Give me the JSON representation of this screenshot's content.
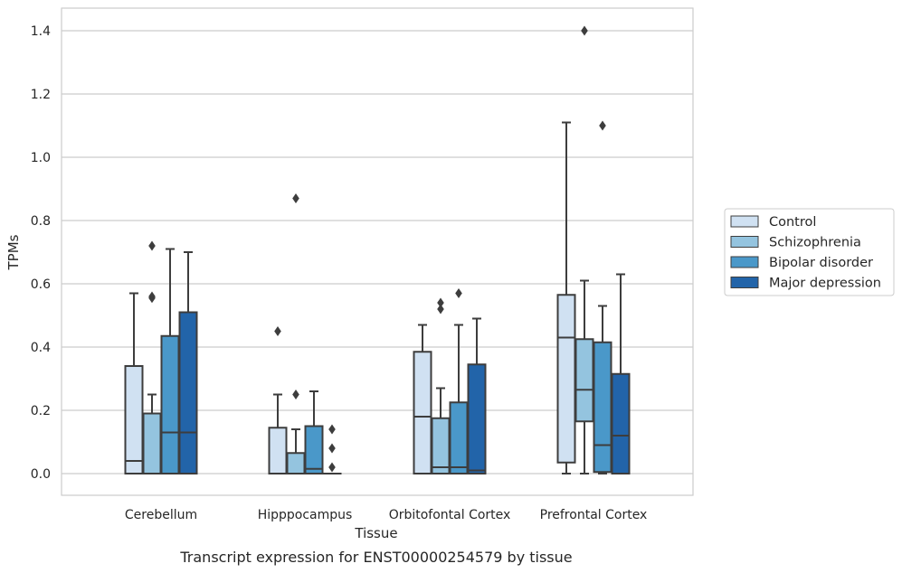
{
  "chart_data": {
    "type": "box",
    "xlabel": "Tissue",
    "ylabel": "TPMs",
    "caption": "Transcript expression for ENST00000254579 by tissue",
    "ylim": [
      -0.07,
      1.47
    ],
    "yticks": [
      0.0,
      0.2,
      0.4,
      0.6,
      0.8,
      1.0,
      1.2,
      1.4
    ],
    "ytick_labels": [
      "0.0",
      "0.2",
      "0.4",
      "0.6",
      "0.8",
      "1.0",
      "1.2",
      "1.4"
    ],
    "grid": "horizontal",
    "legend_position": "right",
    "categories": [
      "Cerebellum",
      "Hipppocampus",
      "Orbitofontal Cortex",
      "Prefrontal Cortex"
    ],
    "series": [
      {
        "name": "Control",
        "color": "#d0e1f2",
        "boxes": [
          {
            "whisker_low": 0.0,
            "q1": 0.0,
            "median": 0.04,
            "q3": 0.34,
            "whisker_high": 0.57,
            "outliers": []
          },
          {
            "whisker_low": 0.0,
            "q1": 0.0,
            "median": 0.0,
            "q3": 0.145,
            "whisker_high": 0.25,
            "outliers": [
              0.45
            ]
          },
          {
            "whisker_low": 0.0,
            "q1": 0.0,
            "median": 0.18,
            "q3": 0.385,
            "whisker_high": 0.47,
            "outliers": []
          },
          {
            "whisker_low": 0.0,
            "q1": 0.035,
            "median": 0.43,
            "q3": 0.565,
            "whisker_high": 1.11,
            "outliers": []
          }
        ]
      },
      {
        "name": "Schizophrenia",
        "color": "#94c4df",
        "boxes": [
          {
            "whisker_low": 0.0,
            "q1": 0.0,
            "median": 0.19,
            "q3": 0.19,
            "whisker_high": 0.25,
            "outliers": [
              0.555,
              0.56,
              0.72
            ]
          },
          {
            "whisker_low": 0.0,
            "q1": 0.0,
            "median": 0.0,
            "q3": 0.065,
            "whisker_high": 0.14,
            "outliers": [
              0.25,
              0.87
            ]
          },
          {
            "whisker_low": 0.0,
            "q1": 0.0,
            "median": 0.02,
            "q3": 0.175,
            "whisker_high": 0.27,
            "outliers": [
              0.52,
              0.54
            ]
          },
          {
            "whisker_low": 0.0,
            "q1": 0.165,
            "median": 0.265,
            "q3": 0.425,
            "whisker_high": 0.61,
            "outliers": [
              1.4
            ]
          }
        ]
      },
      {
        "name": "Bipolar disorder",
        "color": "#4a98c9",
        "boxes": [
          {
            "whisker_low": 0.0,
            "q1": 0.0,
            "median": 0.13,
            "q3": 0.435,
            "whisker_high": 0.71,
            "outliers": []
          },
          {
            "whisker_low": 0.0,
            "q1": 0.0,
            "median": 0.015,
            "q3": 0.15,
            "whisker_high": 0.26,
            "outliers": []
          },
          {
            "whisker_low": 0.0,
            "q1": 0.0,
            "median": 0.02,
            "q3": 0.225,
            "whisker_high": 0.47,
            "outliers": [
              0.57
            ]
          },
          {
            "whisker_low": 0.0,
            "q1": 0.005,
            "median": 0.09,
            "q3": 0.415,
            "whisker_high": 0.53,
            "outliers": [
              1.1
            ]
          }
        ]
      },
      {
        "name": "Major depression",
        "color": "#2264a9",
        "boxes": [
          {
            "whisker_low": 0.0,
            "q1": 0.0,
            "median": 0.13,
            "q3": 0.51,
            "whisker_high": 0.7,
            "outliers": []
          },
          {
            "whisker_low": 0.0,
            "q1": 0.0,
            "median": 0.0,
            "q3": 0.0,
            "whisker_high": 0.0,
            "outliers": [
              0.02,
              0.08,
              0.14
            ]
          },
          {
            "whisker_low": 0.0,
            "q1": 0.0,
            "median": 0.01,
            "q3": 0.345,
            "whisker_high": 0.49,
            "outliers": []
          },
          {
            "whisker_low": 0.0,
            "q1": 0.0,
            "median": 0.12,
            "q3": 0.315,
            "whisker_high": 0.63,
            "outliers": []
          }
        ]
      }
    ],
    "colors": {
      "grid": "#cccccc",
      "frame": "#cccccc",
      "line": "#3d3d3d",
      "text": "#262626"
    }
  }
}
